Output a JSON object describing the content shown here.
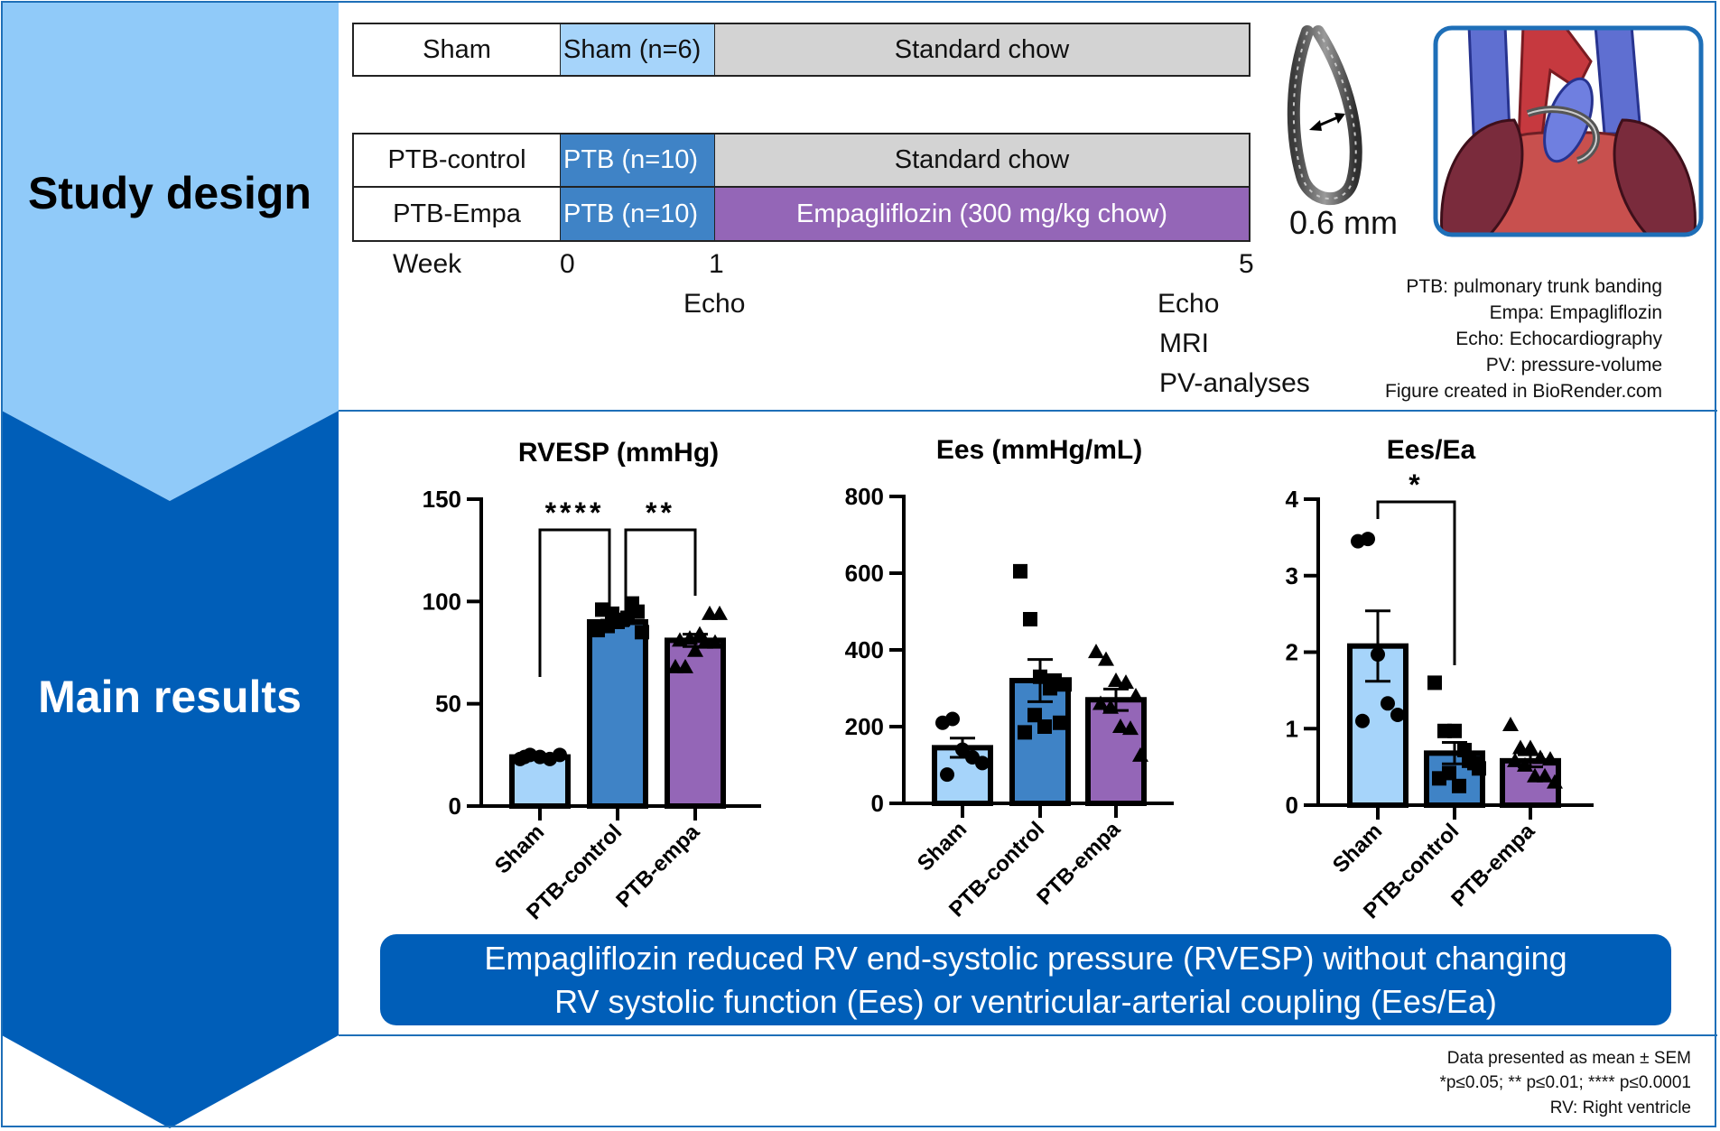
{
  "sections": {
    "study_design_label": "Study design",
    "main_results_label": "Main results"
  },
  "colors": {
    "study_design_bg": "#90CAF9",
    "main_results_bg": "#005EB8",
    "sham": "#A6D4FA",
    "ptb": "#3F83C6",
    "chow": "#D3D3D3",
    "empa": "#9466B7",
    "frame": "#1E6FB8"
  },
  "timeline": {
    "rows": [
      {
        "group": "Sham",
        "phase1": "Sham (n=6)",
        "phase2": "Standard chow"
      },
      {
        "group": "PTB-control",
        "phase1": "PTB (n=10)",
        "phase2": "Standard chow"
      },
      {
        "group": "PTB-Empa",
        "phase1": "PTB (n=10)",
        "phase2": "Empagliflozin (300 mg/kg chow)"
      }
    ],
    "week_label": "Week",
    "weeks": [
      "0",
      "1",
      "5"
    ],
    "week1_events": [
      "Echo"
    ],
    "week5_events": [
      "Echo",
      "MRI",
      "PV-analyses"
    ]
  },
  "band_image": {
    "caption": "0.6 mm"
  },
  "abbreviations": [
    "PTB: pulmonary trunk banding",
    "Empa: Empagliflozin",
    "Echo: Echocardiography",
    "PV: pressure-volume",
    "Figure created in BioRender.com"
  ],
  "chart_data": [
    {
      "type": "bar",
      "title": "RVESP (mmHg)",
      "categories": [
        "Sham",
        "PTB-control",
        "PTB-empa"
      ],
      "values": [
        24,
        90,
        81
      ],
      "sem": [
        0.5,
        1.5,
        3
      ],
      "ylim": [
        0,
        150
      ],
      "yticks": [
        0,
        50,
        100,
        150
      ],
      "points": [
        [
          23,
          25,
          24,
          23,
          25,
          24
        ],
        [
          86,
          88,
          90,
          92,
          95,
          96,
          94,
          91,
          99,
          85
        ],
        [
          68,
          68,
          76,
          80,
          80,
          81,
          82,
          84,
          94,
          94
        ]
      ],
      "markers": [
        "circle",
        "square",
        "triangle"
      ],
      "significance": [
        {
          "from": 0,
          "to": 1,
          "label": "****"
        },
        {
          "from": 1,
          "to": 2,
          "label": "**"
        }
      ],
      "xlabel": "",
      "ylabel": ""
    },
    {
      "type": "bar",
      "title": "Ees (mmHg/mL)",
      "categories": [
        "Sham",
        "PTB-control",
        "PTB-empa"
      ],
      "values": [
        145,
        320,
        270
      ],
      "sem": [
        25,
        55,
        28
      ],
      "ylim": [
        0,
        800
      ],
      "yticks": [
        0,
        200,
        400,
        600,
        800
      ],
      "points": [
        [
          210,
          220,
          140,
          120,
          105,
          75
        ],
        [
          605,
          480,
          330,
          300,
          210,
          185,
          230,
          200,
          320,
          310
        ],
        [
          395,
          375,
          320,
          315,
          280,
          260,
          250,
          200,
          195,
          125
        ]
      ],
      "markers": [
        "circle",
        "square",
        "triangle"
      ],
      "significance": [],
      "xlabel": "",
      "ylabel": ""
    },
    {
      "type": "bar",
      "title": "Ees/Ea",
      "categories": [
        "Sham",
        "PTB-control",
        "PTB-empa"
      ],
      "values": [
        2.08,
        0.68,
        0.58
      ],
      "sem": [
        0.46,
        0.14,
        0.08
      ],
      "ylim": [
        0,
        4
      ],
      "yticks": [
        0,
        1,
        2,
        3,
        4
      ],
      "points": [
        [
          3.45,
          3.48,
          1.97,
          1.33,
          1.18,
          1.1
        ],
        [
          1.6,
          0.97,
          0.97,
          0.72,
          0.55,
          0.35,
          0.42,
          0.25,
          0.58,
          0.48
        ],
        [
          1.05,
          0.75,
          0.75,
          0.62,
          0.6,
          0.58,
          0.52,
          0.38,
          0.38,
          0.3
        ]
      ],
      "markers": [
        "circle",
        "square",
        "triangle"
      ],
      "significance": [
        {
          "from": 0,
          "to": 1,
          "label": "*"
        }
      ],
      "xlabel": "",
      "ylabel": ""
    }
  ],
  "conclusion": {
    "line1": "Empagliflozin reduced RV end-systolic pressure (RVESP) without changing",
    "line2": "RV systolic function (Ees) or ventricular-arterial coupling (Ees/Ea)"
  },
  "footnotes": [
    "Data presented as mean ± SEM",
    "*p≤0.05; ** p≤0.01; **** p≤0.0001",
    "RV: Right ventricle"
  ]
}
